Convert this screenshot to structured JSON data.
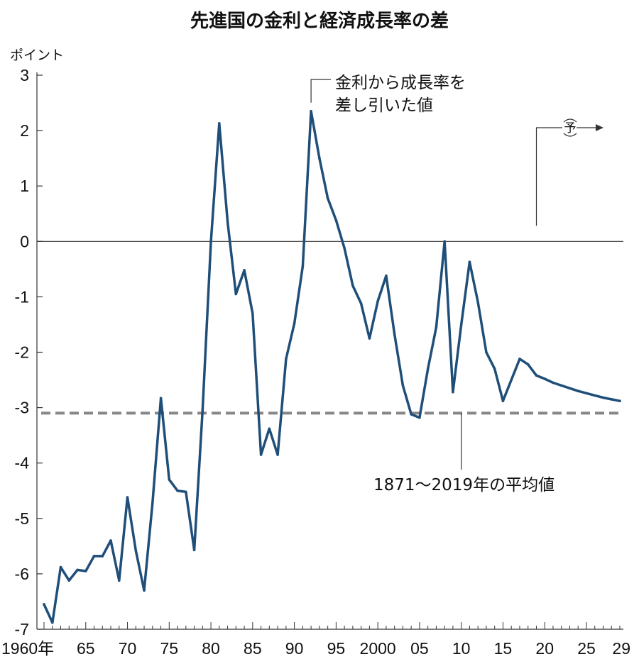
{
  "chart_data": {
    "type": "line",
    "title": "先進国の金利と経済成長率の差",
    "ylabel": "ポイント",
    "ylim": [
      -7,
      3
    ],
    "xlim": [
      1960,
      2029
    ],
    "y_ticks": [
      "3",
      "2",
      "1",
      "0",
      "-1",
      "-2",
      "-3",
      "-4",
      "-5",
      "-6",
      "-7"
    ],
    "x_ticks": [
      {
        "year": 1960,
        "label": "1960年"
      },
      {
        "year": 1965,
        "label": "65"
      },
      {
        "year": 1970,
        "label": "70"
      },
      {
        "year": 1975,
        "label": "75"
      },
      {
        "year": 1980,
        "label": "80"
      },
      {
        "year": 1985,
        "label": "85"
      },
      {
        "year": 1990,
        "label": "90"
      },
      {
        "year": 1995,
        "label": "95"
      },
      {
        "year": 2000,
        "label": "2000"
      },
      {
        "year": 2005,
        "label": "05"
      },
      {
        "year": 2010,
        "label": "10"
      },
      {
        "year": 2015,
        "label": "15"
      },
      {
        "year": 2020,
        "label": "20"
      },
      {
        "year": 2025,
        "label": "25"
      },
      {
        "year": 2029,
        "label": "29"
      }
    ],
    "series": [
      {
        "name": "金利から成長率を差し引いた値",
        "color": "#1f4e79",
        "x": [
          1960,
          1961,
          1962,
          1963,
          1964,
          1965,
          1966,
          1967,
          1968,
          1969,
          1970,
          1971,
          1972,
          1973,
          1974,
          1975,
          1976,
          1977,
          1978,
          1979,
          1980,
          1981,
          1982,
          1983,
          1984,
          1985,
          1986,
          1987,
          1988,
          1989,
          1990,
          1991,
          1992,
          1993,
          1994,
          1995,
          1996,
          1997,
          1998,
          1999,
          2000,
          2001,
          2002,
          2003,
          2004,
          2005,
          2006,
          2007,
          2008,
          2009,
          2010,
          2011,
          2012,
          2013,
          2014,
          2015,
          2016,
          2017,
          2018,
          2019,
          2020,
          2021,
          2022,
          2023,
          2024,
          2025,
          2026,
          2027,
          2028,
          2029
        ],
        "values": [
          -6.55,
          -6.88,
          -5.88,
          -6.12,
          -5.93,
          -5.95,
          -5.68,
          -5.68,
          -5.4,
          -6.12,
          -4.62,
          -5.58,
          -6.3,
          -4.72,
          -2.83,
          -4.3,
          -4.5,
          -4.52,
          -5.57,
          -3.05,
          0.0,
          2.13,
          0.35,
          -0.95,
          -0.52,
          -1.3,
          -3.85,
          -3.38,
          -3.85,
          -2.12,
          -1.48,
          -0.45,
          2.35,
          1.5,
          0.78,
          0.38,
          -0.12,
          -0.8,
          -1.12,
          -1.75,
          -1.08,
          -0.62,
          -1.68,
          -2.6,
          -3.12,
          -3.18,
          -2.3,
          -1.55,
          0.0,
          -2.72,
          -1.5,
          -0.37,
          -1.1,
          -2.0,
          -2.3,
          -2.88,
          -2.5,
          -2.12,
          -2.22,
          -2.42,
          -2.48,
          -2.55,
          -2.6,
          -2.65,
          -2.7,
          -2.74,
          -2.78,
          -2.82,
          -2.85,
          -2.88
        ]
      }
    ],
    "average": {
      "value": -3.1,
      "label": "1871〜2019年の平均値",
      "color": "#888888"
    },
    "annotations": {
      "series_label_line1": "金利から成長率を",
      "series_label_line2": "差し引いた値",
      "forecast_start_year": 2019,
      "forecast_label": "予"
    },
    "grid": false
  }
}
